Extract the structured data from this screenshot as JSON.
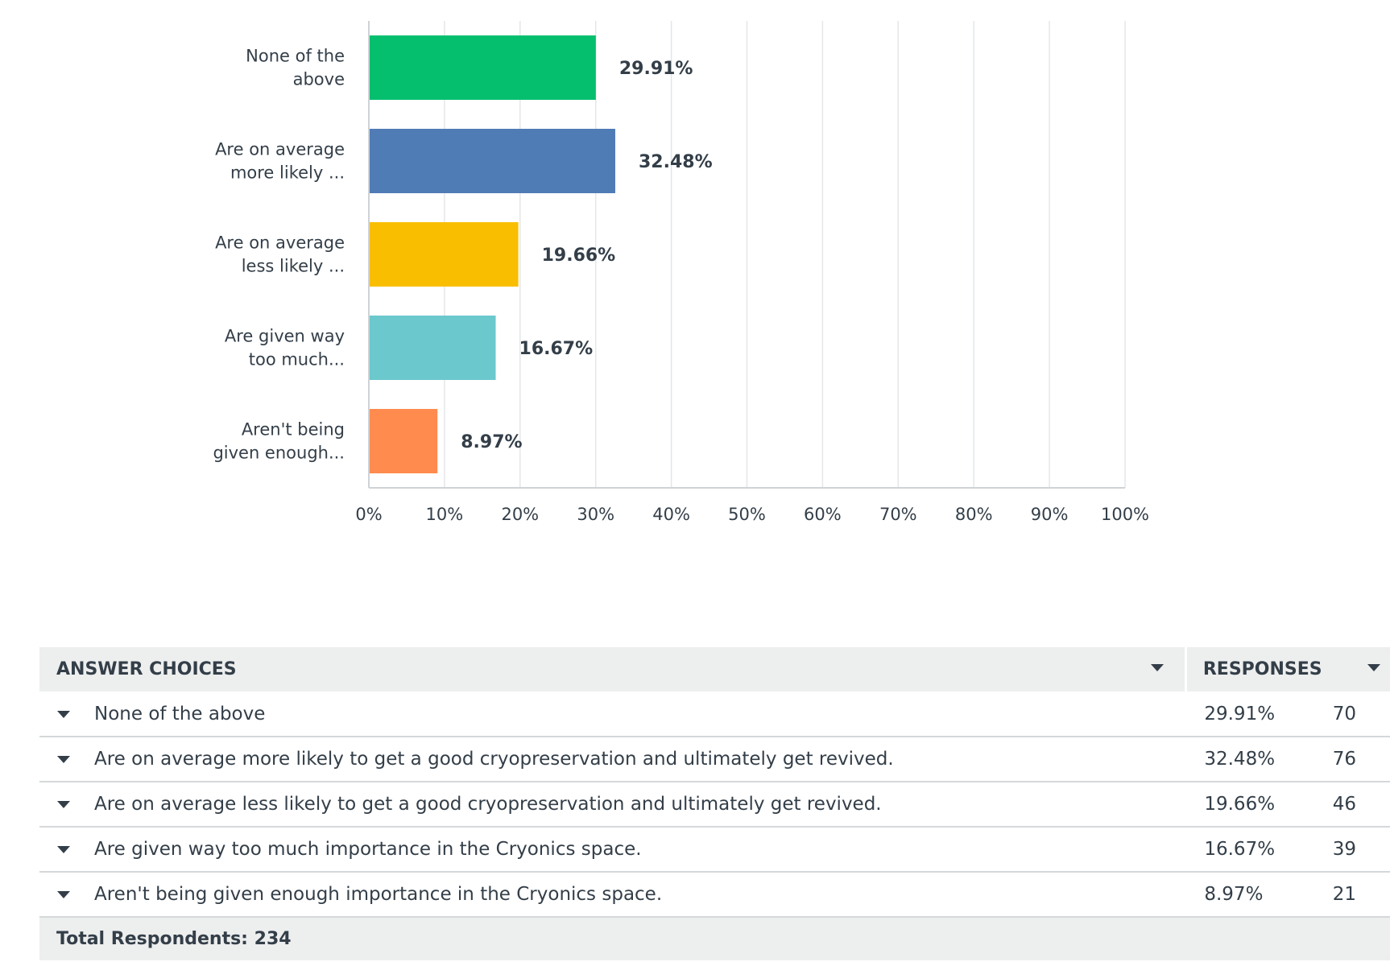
{
  "chart_data": {
    "type": "bar",
    "orientation": "horizontal",
    "categories": [
      [
        "None of the",
        "above"
      ],
      [
        "Are on average",
        "more likely ..."
      ],
      [
        "Are on average",
        "less likely ..."
      ],
      [
        "Are given way",
        "too much..."
      ],
      [
        "Aren't being",
        "given enough..."
      ]
    ],
    "values": [
      29.91,
      32.48,
      19.66,
      16.67,
      8.97
    ],
    "value_labels": [
      "29.91%",
      "32.48%",
      "19.66%",
      "16.67%",
      "8.97%"
    ],
    "colors": [
      "#05bf6e",
      "#507cb6",
      "#f9be00",
      "#6bc8cd",
      "#ff8b4f"
    ],
    "xlim": [
      0,
      100
    ],
    "x_ticks": [
      "0%",
      "10%",
      "20%",
      "30%",
      "40%",
      "50%",
      "60%",
      "70%",
      "80%",
      "90%",
      "100%"
    ],
    "grid": true,
    "title": "",
    "xlabel": "",
    "ylabel": ""
  },
  "table": {
    "header_choices": "ANSWER CHOICES",
    "header_responses": "RESPONSES",
    "rows": [
      {
        "choice": "None of the above",
        "percent": "29.91%",
        "count": "70"
      },
      {
        "choice": "Are on average more likely to get a good cryopreservation and ultimately get revived.",
        "percent": "32.48%",
        "count": "76"
      },
      {
        "choice": "Are on average less likely to get a good cryopreservation and ultimately get revived.",
        "percent": "19.66%",
        "count": "46"
      },
      {
        "choice": "Are given way too much importance in the Cryonics space.",
        "percent": "16.67%",
        "count": "39"
      },
      {
        "choice": "Aren't being given enough importance in the Cryonics space.",
        "percent": "8.97%",
        "count": "21"
      }
    ],
    "total_label": "Total Respondents: 234"
  },
  "icons": {
    "sort": "chevron-down-icon",
    "row_expand": "caret-down-icon"
  }
}
